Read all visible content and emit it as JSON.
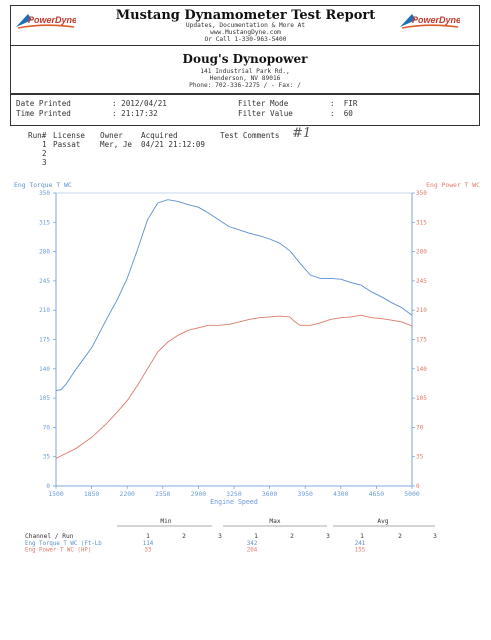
{
  "header": {
    "logo_text": "PowerDyne",
    "title": "Mustang Dynamometer Test Report",
    "lines": [
      "Updates, Documentation & More At",
      "www.MustangDyne.com",
      "Or Call 1-330-963-5400"
    ]
  },
  "shop": {
    "name": "Doug's Dynopower",
    "lines": [
      "141 Industrial Park Rd.,",
      "Henderson, NV  89016",
      "Phone: 702-336-2275 /  - Fax:  /"
    ]
  },
  "info": {
    "date_printed_label": "Date Printed",
    "date_printed": ": 2012/04/21",
    "time_printed_label": "Time Printed",
    "time_printed": ": 21:17:32",
    "filter_mode_label": "Filter Mode",
    "filter_mode": ":  FIR",
    "filter_value_label": "Filter Value",
    "filter_value": ":  60"
  },
  "runs": {
    "headers": [
      "Run#",
      "License",
      "Owner",
      "Acquired",
      "Test Comments"
    ],
    "rows": [
      {
        "run": "1",
        "license": "Passat",
        "owner": "Mer, Je",
        "acquired": "04/21 21:12:09"
      },
      {
        "run": "2"
      },
      {
        "run": "3"
      }
    ],
    "handwritten_note": "#1"
  },
  "chart_data": {
    "type": "line",
    "title": "",
    "xlabel": "Engine Speed",
    "ylabel_left": "Eng Torque T WC",
    "ylabel_right": "Eng Power T WC",
    "xlim": [
      1500,
      5000
    ],
    "ylim": [
      0,
      350
    ],
    "x_ticks": [
      "1500",
      "1850",
      "2200",
      "2550",
      "2900",
      "3250",
      "3600",
      "3950",
      "4300",
      "4650",
      "5000"
    ],
    "y_ticks_left": [
      "0",
      "35",
      "70",
      "105",
      "140",
      "175",
      "210",
      "245",
      "280",
      "315",
      "350"
    ],
    "y_ticks_right": [
      "0",
      "35",
      "70",
      "105",
      "140",
      "175",
      "210",
      "245",
      "280",
      "315",
      "350"
    ],
    "grid": false,
    "colors": {
      "torque": "#5b8fd1",
      "power": "#e07a6a",
      "axis": "#6a9ad8"
    },
    "series": [
      {
        "name": "Eng Torque T WC",
        "axis": "left",
        "x": [
          1500,
          1550,
          1600,
          1700,
          1850,
          2000,
          2100,
          2200,
          2300,
          2400,
          2500,
          2600,
          2700,
          2800,
          2900,
          3000,
          3100,
          3200,
          3300,
          3400,
          3500,
          3600,
          3700,
          3800,
          3900,
          4000,
          4100,
          4200,
          4300,
          4400,
          4500,
          4600,
          4700,
          4800,
          4900,
          5000
        ],
        "y": [
          114,
          115,
          122,
          140,
          165,
          200,
          222,
          248,
          282,
          318,
          338,
          342,
          340,
          336,
          333,
          326,
          318,
          310,
          306,
          302,
          299,
          295,
          290,
          281,
          266,
          252,
          248,
          248,
          247,
          243,
          240,
          232,
          226,
          219,
          213,
          204
        ]
      },
      {
        "name": "Eng Power T WC",
        "axis": "right",
        "x": [
          1500,
          1700,
          1850,
          2000,
          2100,
          2200,
          2300,
          2400,
          2500,
          2600,
          2700,
          2800,
          2900,
          3000,
          3100,
          3200,
          3300,
          3400,
          3500,
          3600,
          3700,
          3800,
          3850,
          3900,
          4000,
          4100,
          4200,
          4300,
          4400,
          4500,
          4600,
          4700,
          4800,
          4900,
          5000
        ],
        "y": [
          33,
          45,
          58,
          75,
          88,
          102,
          120,
          140,
          160,
          172,
          180,
          186,
          189,
          192,
          192,
          193,
          196,
          199,
          201,
          202,
          203,
          202,
          196,
          192,
          192,
          195,
          199,
          201,
          202,
          204,
          201,
          200,
          198,
          196,
          191
        ]
      }
    ]
  },
  "stats": {
    "group_headers": [
      "Min",
      "Max",
      "Avg"
    ],
    "channel_label": "Channel / Run",
    "run_numbers": [
      "1",
      "2",
      "3"
    ],
    "rows": [
      {
        "label": "Eng Torque T WC (Ft-Lb",
        "min": "114",
        "max": "342",
        "avg": "241",
        "color": "#5b8fd1"
      },
      {
        "label": "Eng Power T WC (HP)",
        "min": "33",
        "max": "204",
        "avg": "155",
        "color": "#e07a6a"
      }
    ]
  }
}
